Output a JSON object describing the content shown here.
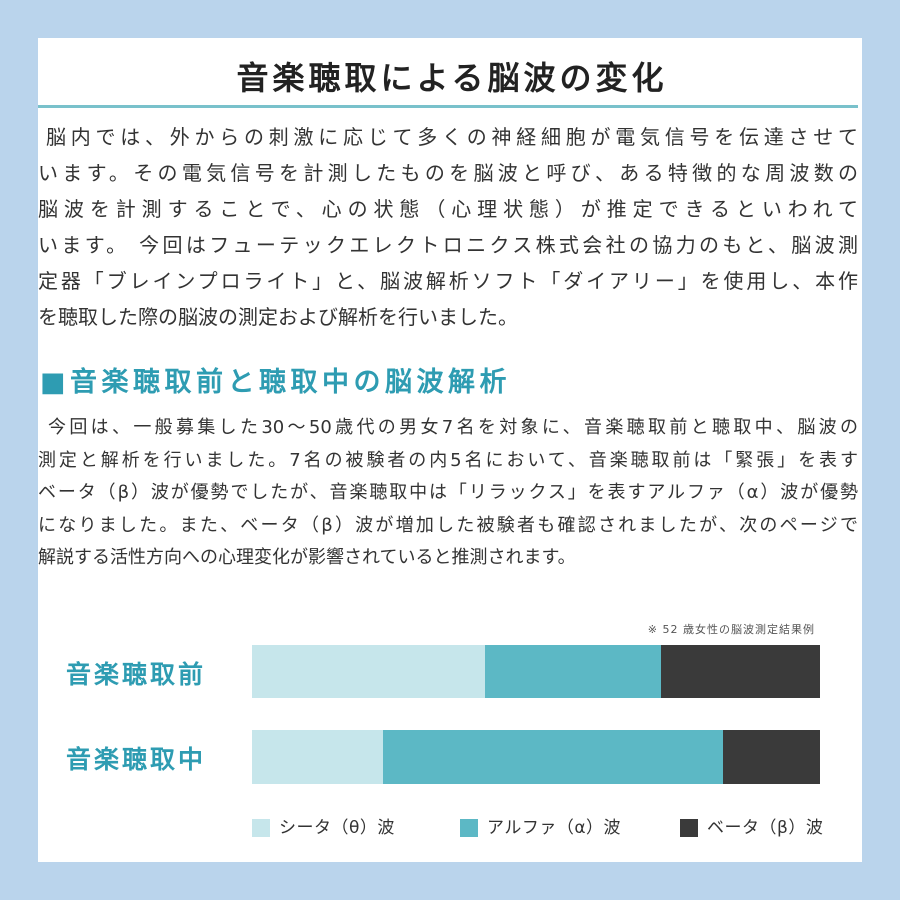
{
  "document": {
    "title": "音楽聴取による脳波の変化",
    "intro": {
      "lines": [
        "脳内では、外からの刺激に応じて多くの神経細胞が電気信号を伝達させて",
        "います。その電気信号を計測したものを脳波と呼び、ある特徴的な周波数の",
        "脳波を計測することで、心の状態（心理状態）が推定できるといわれて",
        "います。 今回はフューテックエレクトロニクス株式会社の協力のもと、脳波測",
        "定器「ブレインプロライト」と、脳波解析ソフト「ダイアリー」を使用し、本作",
        "を聴取した際の脳波の測定および解析を行いました。"
      ]
    },
    "section": {
      "heading": "■音楽聴取前と聴取中の脳波解析",
      "lines": [
        "今回は、一般募集した30〜50歳代の男女7名を対象に、音楽聴取前と聴取中、脳波の",
        "測定と解析を行いました。7名の被験者の内5名において、音楽聴取前は「緊張」を表す",
        "ベータ（β）波が優勢でしたが、音楽聴取中は「リラックス」を表すアルファ（α）波が優勢",
        "になりました。また、ベータ（β）波が増加した被験者も確認されましたが、次のページで",
        "解説する活性方向への心理変化が影響されていると推測されます。"
      ]
    }
  },
  "colors": {
    "page_border": "#bad4ec",
    "accent": "#2e9cb2",
    "rule": "#79c1cb"
  },
  "chart_data": {
    "type": "bar",
    "orientation": "horizontal",
    "stacked": true,
    "categories": [
      "音楽聴取前",
      "音楽聴取中"
    ],
    "series": [
      {
        "name": "シータ（θ）波",
        "values": [
          41,
          23
        ],
        "color": "#c6e6eb"
      },
      {
        "name": "アルファ（α）波",
        "values": [
          31,
          60
        ],
        "color": "#5cb8c5"
      },
      {
        "name": "ベータ（β）波",
        "values": [
          28,
          17
        ],
        "color": "#3a3a3a"
      }
    ],
    "xlim": [
      0,
      100
    ],
    "legend": "bottom",
    "annotation": "※ 52 歳女性の脳波測定結果例"
  }
}
